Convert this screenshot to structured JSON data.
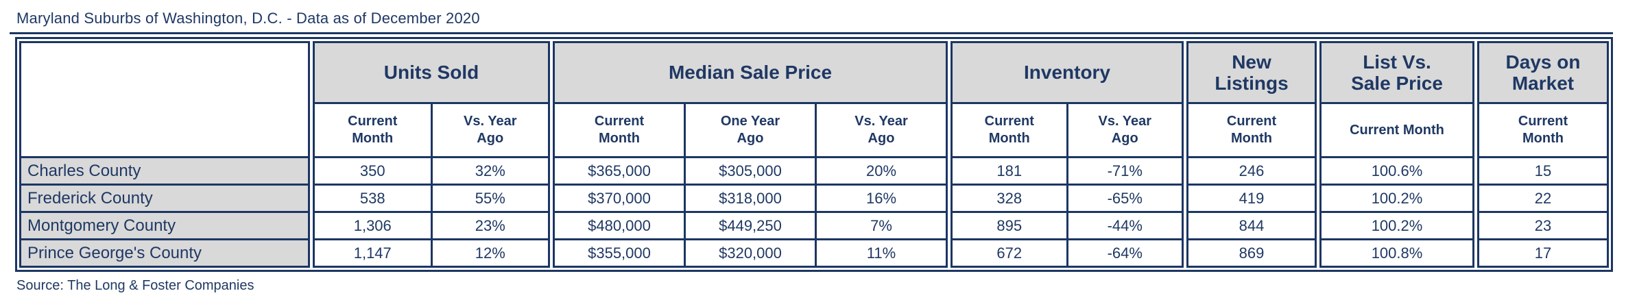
{
  "title": "Maryland Suburbs of Washington, D.C. - Data as of December 2020",
  "source": "Source: The Long & Foster Companies",
  "colors": {
    "navy_text": "#1F3864",
    "border_navy": "#1C3663",
    "header_gray": "#D9D9D9",
    "cell_white": "#FFFFFF"
  },
  "table": {
    "groups": [
      {
        "name": "county",
        "header": "",
        "columns": [
          {
            "subheader": "",
            "values": [
              "Charles County",
              "Frederick County",
              "Montgomery County",
              "Prince George's County"
            ]
          }
        ]
      },
      {
        "name": "units-sold",
        "header": "Units Sold",
        "columns": [
          {
            "subheader": "Current Month",
            "values": [
              "350",
              "538",
              "1,306",
              "1,147"
            ]
          },
          {
            "subheader": "Vs. Year Ago",
            "values": [
              "32%",
              "55%",
              "23%",
              "12%"
            ]
          }
        ]
      },
      {
        "name": "median-sale-price",
        "header": "Median Sale Price",
        "columns": [
          {
            "subheader": "Current Month",
            "values": [
              "$365,000",
              "$370,000",
              "$480,000",
              "$355,000"
            ]
          },
          {
            "subheader": "One Year Ago",
            "values": [
              "$305,000",
              "$318,000",
              "$449,250",
              "$320,000"
            ]
          },
          {
            "subheader": "Vs. Year Ago",
            "values": [
              "20%",
              "16%",
              "7%",
              "11%"
            ]
          }
        ]
      },
      {
        "name": "inventory",
        "header": "Inventory",
        "columns": [
          {
            "subheader": "Current Month",
            "values": [
              "181",
              "328",
              "895",
              "672"
            ]
          },
          {
            "subheader": "Vs. Year Ago",
            "values": [
              "-71%",
              "-65%",
              "-44%",
              "-64%"
            ]
          }
        ]
      },
      {
        "name": "new-listings",
        "header": "New Listings",
        "columns": [
          {
            "subheader": "Current Month",
            "values": [
              "246",
              "419",
              "844",
              "869"
            ]
          }
        ]
      },
      {
        "name": "list-vs-sale-price",
        "header": "List Vs. Sale Price",
        "columns": [
          {
            "subheader": "Current Month",
            "values": [
              "100.6%",
              "100.2%",
              "100.2%",
              "100.8%"
            ]
          }
        ]
      },
      {
        "name": "days-on-market",
        "header": "Days on Market",
        "columns": [
          {
            "subheader": "Current Month",
            "values": [
              "15",
              "22",
              "23",
              "17"
            ]
          }
        ]
      }
    ]
  }
}
